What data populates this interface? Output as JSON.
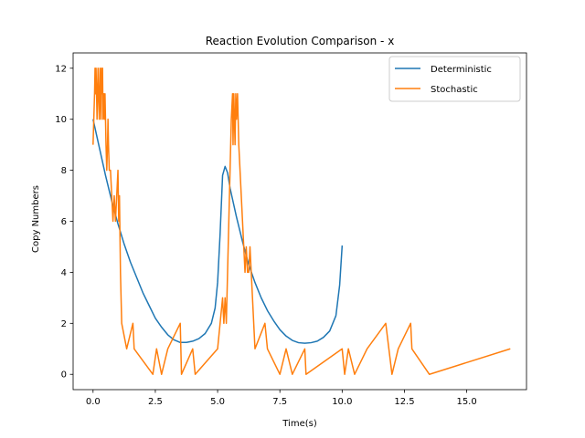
{
  "chart_data": {
    "type": "line",
    "title": "Reaction Evolution Comparison - x",
    "xlabel": "Time(s)",
    "ylabel": "Copy Numbers",
    "xlim": [
      -0.8,
      17.4
    ],
    "ylim": [
      -0.6,
      12.6
    ],
    "xticks": [
      0,
      2.5,
      5,
      7.5,
      10,
      12.5,
      15
    ],
    "xtick_labels": [
      "0.0",
      "2.5",
      "5.0",
      "7.5",
      "10.0",
      "12.5",
      "15.0"
    ],
    "yticks": [
      0,
      2,
      4,
      6,
      8,
      10,
      12
    ],
    "ytick_labels": [
      "0",
      "2",
      "4",
      "6",
      "8",
      "10",
      "12"
    ],
    "grid": false,
    "legend_position": "upper right",
    "series": [
      {
        "name": "Deterministic",
        "color": "#1f77b4",
        "points": [
          [
            0.0,
            10.0
          ],
          [
            0.25,
            8.9
          ],
          [
            0.5,
            7.8
          ],
          [
            0.75,
            6.8
          ],
          [
            1.0,
            5.9
          ],
          [
            1.25,
            5.1
          ],
          [
            1.5,
            4.4
          ],
          [
            1.75,
            3.8
          ],
          [
            2.0,
            3.2
          ],
          [
            2.25,
            2.7
          ],
          [
            2.5,
            2.2
          ],
          [
            2.75,
            1.85
          ],
          [
            3.0,
            1.55
          ],
          [
            3.25,
            1.35
          ],
          [
            3.5,
            1.25
          ],
          [
            3.75,
            1.25
          ],
          [
            4.0,
            1.3
          ],
          [
            4.25,
            1.4
          ],
          [
            4.5,
            1.6
          ],
          [
            4.75,
            2.0
          ],
          [
            4.9,
            2.6
          ],
          [
            5.0,
            3.6
          ],
          [
            5.1,
            5.5
          ],
          [
            5.2,
            7.8
          ],
          [
            5.3,
            8.15
          ],
          [
            5.4,
            7.9
          ],
          [
            5.5,
            7.3
          ],
          [
            5.75,
            6.2
          ],
          [
            6.0,
            5.2
          ],
          [
            6.25,
            4.3
          ],
          [
            6.5,
            3.6
          ],
          [
            6.75,
            3.0
          ],
          [
            7.0,
            2.5
          ],
          [
            7.25,
            2.1
          ],
          [
            7.5,
            1.75
          ],
          [
            7.75,
            1.5
          ],
          [
            8.0,
            1.33
          ],
          [
            8.25,
            1.24
          ],
          [
            8.5,
            1.22
          ],
          [
            8.75,
            1.24
          ],
          [
            9.0,
            1.3
          ],
          [
            9.25,
            1.45
          ],
          [
            9.5,
            1.7
          ],
          [
            9.75,
            2.3
          ],
          [
            9.9,
            3.5
          ],
          [
            10.0,
            5.05
          ]
        ]
      },
      {
        "name": "Stochastic",
        "color": "#ff7f0e",
        "points": [
          [
            0.0,
            9
          ],
          [
            0.03,
            10
          ],
          [
            0.06,
            11
          ],
          [
            0.08,
            12
          ],
          [
            0.1,
            11
          ],
          [
            0.12,
            12
          ],
          [
            0.14,
            11
          ],
          [
            0.16,
            10
          ],
          [
            0.18,
            11
          ],
          [
            0.2,
            12
          ],
          [
            0.22,
            11
          ],
          [
            0.25,
            10
          ],
          [
            0.28,
            12
          ],
          [
            0.3,
            11
          ],
          [
            0.32,
            10
          ],
          [
            0.34,
            12
          ],
          [
            0.36,
            11
          ],
          [
            0.38,
            12
          ],
          [
            0.4,
            10
          ],
          [
            0.43,
            11
          ],
          [
            0.46,
            10
          ],
          [
            0.48,
            11
          ],
          [
            0.5,
            10
          ],
          [
            0.52,
            9
          ],
          [
            0.55,
            8
          ],
          [
            0.58,
            9
          ],
          [
            0.6,
            10
          ],
          [
            0.62,
            9
          ],
          [
            0.65,
            8
          ],
          [
            0.7,
            8
          ],
          [
            0.75,
            7
          ],
          [
            0.8,
            6
          ],
          [
            0.85,
            7
          ],
          [
            0.9,
            6
          ],
          [
            0.95,
            7
          ],
          [
            1.0,
            8
          ],
          [
            1.03,
            6
          ],
          [
            1.06,
            7
          ],
          [
            1.1,
            4
          ],
          [
            1.15,
            2
          ],
          [
            1.35,
            1
          ],
          [
            1.6,
            2
          ],
          [
            1.65,
            1
          ],
          [
            2.4,
            0
          ],
          [
            2.55,
            1
          ],
          [
            2.75,
            0
          ],
          [
            3.0,
            1
          ],
          [
            3.5,
            2
          ],
          [
            3.55,
            0
          ],
          [
            4.0,
            1
          ],
          [
            4.1,
            0
          ],
          [
            5.0,
            1
          ],
          [
            5.1,
            2
          ],
          [
            5.2,
            3
          ],
          [
            5.25,
            2
          ],
          [
            5.3,
            3
          ],
          [
            5.35,
            2
          ],
          [
            5.4,
            4
          ],
          [
            5.45,
            6
          ],
          [
            5.5,
            8
          ],
          [
            5.55,
            10
          ],
          [
            5.6,
            11
          ],
          [
            5.62,
            9
          ],
          [
            5.65,
            11
          ],
          [
            5.7,
            9
          ],
          [
            5.73,
            11
          ],
          [
            5.76,
            10
          ],
          [
            5.8,
            11
          ],
          [
            5.85,
            9
          ],
          [
            5.9,
            8
          ],
          [
            5.95,
            7
          ],
          [
            6.0,
            6
          ],
          [
            6.05,
            5
          ],
          [
            6.1,
            4
          ],
          [
            6.15,
            5
          ],
          [
            6.2,
            4
          ],
          [
            6.25,
            4
          ],
          [
            6.3,
            5
          ],
          [
            6.35,
            4
          ],
          [
            6.4,
            3
          ],
          [
            6.45,
            2
          ],
          [
            6.5,
            1
          ],
          [
            6.9,
            2
          ],
          [
            7.0,
            1
          ],
          [
            7.5,
            0
          ],
          [
            7.75,
            1
          ],
          [
            8.0,
            0
          ],
          [
            8.5,
            1
          ],
          [
            8.55,
            0
          ],
          [
            10.0,
            1
          ],
          [
            10.1,
            0
          ],
          [
            10.25,
            1
          ],
          [
            10.5,
            0
          ],
          [
            11.0,
            1
          ],
          [
            11.75,
            2
          ],
          [
            12.0,
            0
          ],
          [
            12.25,
            1
          ],
          [
            12.75,
            2
          ],
          [
            12.8,
            1
          ],
          [
            13.5,
            0
          ],
          [
            16.75,
            1
          ]
        ]
      }
    ]
  }
}
